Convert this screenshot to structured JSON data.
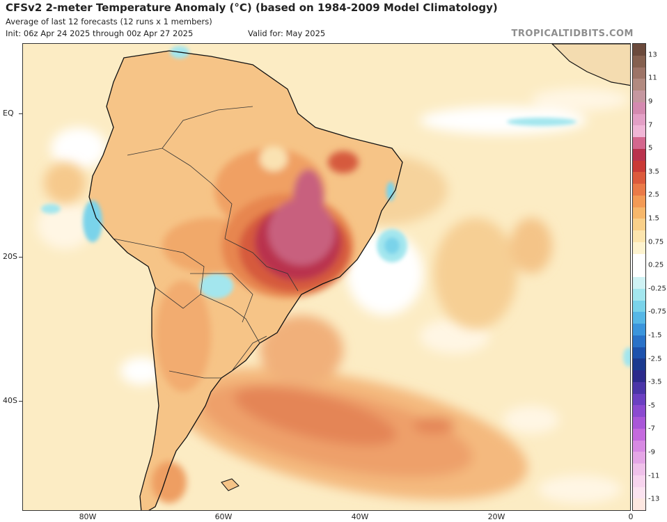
{
  "header": {
    "title": "CFSv2 2-meter Temperature Anomaly (°C) (based on 1984-2009 Model Climatology)",
    "subtitle": "Average of last 12 forecasts (12 runs x 1 members)",
    "init": "Init: 06z Apr 24 2025 through 00z Apr 27 2025",
    "valid": "Valid for: May 2025",
    "brand": "TROPICALTIDBITS.COM"
  },
  "axes": {
    "lat_labels": [
      "EQ",
      "20S",
      "40S"
    ],
    "lon_labels": [
      "80W",
      "60W",
      "40W",
      "20W",
      "0"
    ]
  },
  "colorbar": {
    "labels": [
      "13",
      "11",
      "9",
      "7",
      "5",
      "3.5",
      "2.5",
      "1.5",
      "0.75",
      "0.25",
      "-0.25",
      "-0.75",
      "-1.5",
      "-2.5",
      "-3.5",
      "-5",
      "-7",
      "-9",
      "-11",
      "-13"
    ],
    "colors": [
      "#6b4a3c",
      "#85604f",
      "#9d7467",
      "#b28a80",
      "#c597a0",
      "#d48ab0",
      "#e3a0c6",
      "#f0b6d6",
      "#d4678e",
      "#b9324d",
      "#c93a36",
      "#dc5a3c",
      "#ea7a48",
      "#f39a55",
      "#f6b76b",
      "#f9d08a",
      "#fce5ae",
      "#fdf3cf",
      "#ffffff",
      "#ffffff",
      "#cff2f4",
      "#a3e6ee",
      "#7ad3ea",
      "#56b7e6",
      "#3b95dc",
      "#2a72c8",
      "#1d52ad",
      "#1b3a8f",
      "#2c2a8c",
      "#4a35a8",
      "#6b40c2",
      "#8b4ad0",
      "#a957d8",
      "#c46ade",
      "#d78ae3",
      "#e4a6e6",
      "#efc1ea",
      "#f7d4ee",
      "#fbe3f0",
      "#fde7e1"
    ]
  },
  "map": {
    "ocean_base": "#fcecc4",
    "land_base": "#f6c487",
    "peak_anomaly": "#b04070"
  }
}
